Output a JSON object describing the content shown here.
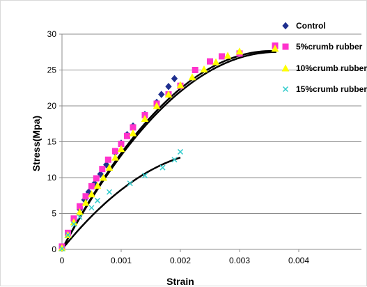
{
  "chart_data": {
    "type": "scatter",
    "xlabel": "Strain",
    "ylabel": "Stress(Mpa)",
    "xlim": [
      0,
      0.004
    ],
    "ylim": [
      0,
      30
    ],
    "xticks": [
      0,
      0.001,
      0.002,
      0.003,
      0.004
    ],
    "xtick_labels": [
      "0",
      "0.001",
      "0.002",
      "0.003",
      "0.004"
    ],
    "yticks": [
      0,
      5,
      10,
      15,
      20,
      25,
      30
    ],
    "ytick_labels": [
      "0",
      "5",
      "10",
      "15",
      "20",
      "25",
      "30"
    ],
    "grid": "horizontal",
    "legend_position": "right",
    "series": [
      {
        "name": "Control",
        "marker": "diamond",
        "color": "#1f2f8f",
        "points": [
          [
            0.0,
            0.3
          ],
          [
            0.0001,
            2.0
          ],
          [
            0.0002,
            4.0
          ],
          [
            0.0003,
            5.6
          ],
          [
            0.00038,
            6.9
          ],
          [
            0.00045,
            8.0
          ],
          [
            0.00055,
            9.2
          ],
          [
            0.00065,
            10.5
          ],
          [
            0.00075,
            11.8
          ],
          [
            0.0009,
            13.5
          ],
          [
            0.001,
            14.8
          ],
          [
            0.0011,
            16.0
          ],
          [
            0.0012,
            17.2
          ],
          [
            0.0014,
            18.8
          ],
          [
            0.0016,
            20.5
          ],
          [
            0.00168,
            21.6
          ],
          [
            0.0018,
            22.7
          ],
          [
            0.0019,
            23.8
          ]
        ]
      },
      {
        "name": "5%crumb rubber",
        "marker": "square",
        "color": "#ff33cc",
        "points": [
          [
            0.0,
            0.4
          ],
          [
            0.0001,
            2.3
          ],
          [
            0.0002,
            4.3
          ],
          [
            0.0003,
            6.0
          ],
          [
            0.0004,
            7.4
          ],
          [
            0.0005,
            8.8
          ],
          [
            0.00058,
            9.9
          ],
          [
            0.00068,
            11.2
          ],
          [
            0.00078,
            12.5
          ],
          [
            0.0009,
            13.7
          ],
          [
            0.001,
            14.7
          ],
          [
            0.0011,
            15.8
          ],
          [
            0.0012,
            17.0
          ],
          [
            0.0014,
            18.7
          ],
          [
            0.0016,
            20.3
          ],
          [
            0.0018,
            21.6
          ],
          [
            0.002,
            22.8
          ],
          [
            0.00225,
            25.0
          ],
          [
            0.0025,
            26.2
          ],
          [
            0.0027,
            26.9
          ],
          [
            0.003,
            27.3
          ],
          [
            0.0036,
            28.4
          ]
        ]
      },
      {
        "name": "10%crumb rubber",
        "marker": "triangle",
        "color": "#ffff00",
        "points": [
          [
            0.0,
            0.2
          ],
          [
            0.0001,
            2.0
          ],
          [
            0.0002,
            3.8
          ],
          [
            0.0003,
            5.2
          ],
          [
            0.0004,
            6.5
          ],
          [
            0.0005,
            7.7
          ],
          [
            0.0006,
            8.9
          ],
          [
            0.0007,
            10.0
          ],
          [
            0.0008,
            11.4
          ],
          [
            0.0009,
            12.8
          ],
          [
            0.001,
            14.0
          ],
          [
            0.0012,
            16.2
          ],
          [
            0.0014,
            18.2
          ],
          [
            0.0016,
            20.0
          ],
          [
            0.0018,
            21.6
          ],
          [
            0.002,
            22.9
          ],
          [
            0.0022,
            24.0
          ],
          [
            0.0024,
            25.1
          ],
          [
            0.0026,
            26.1
          ],
          [
            0.0028,
            27.0
          ],
          [
            0.003,
            27.6
          ],
          [
            0.0036,
            28.0
          ]
        ]
      },
      {
        "name": "15%crumb rubber",
        "marker": "x",
        "color": "#33cccc",
        "points": [
          [
            0.0,
            0.1
          ],
          [
            0.0001,
            2.0
          ],
          [
            0.0002,
            3.5
          ],
          [
            0.0003,
            4.5
          ],
          [
            0.0005,
            5.8
          ],
          [
            0.0006,
            6.8
          ],
          [
            0.0008,
            8.0
          ],
          [
            0.00115,
            9.2
          ],
          [
            0.0014,
            10.3
          ],
          [
            0.0017,
            11.4
          ],
          [
            0.0019,
            12.5
          ],
          [
            0.002,
            13.6
          ]
        ]
      }
    ],
    "trendlines": [
      {
        "coef": [
          0.0,
          15200.0,
          -2100000.0
        ],
        "xmax": 0.00362
      },
      {
        "coef": [
          0.0,
          15600.0,
          -2200000.0
        ],
        "xmax": 0.00362
      },
      {
        "coef": [
          0.0,
          10200.0,
          -1900000.0
        ],
        "xmax": 0.002
      }
    ]
  }
}
